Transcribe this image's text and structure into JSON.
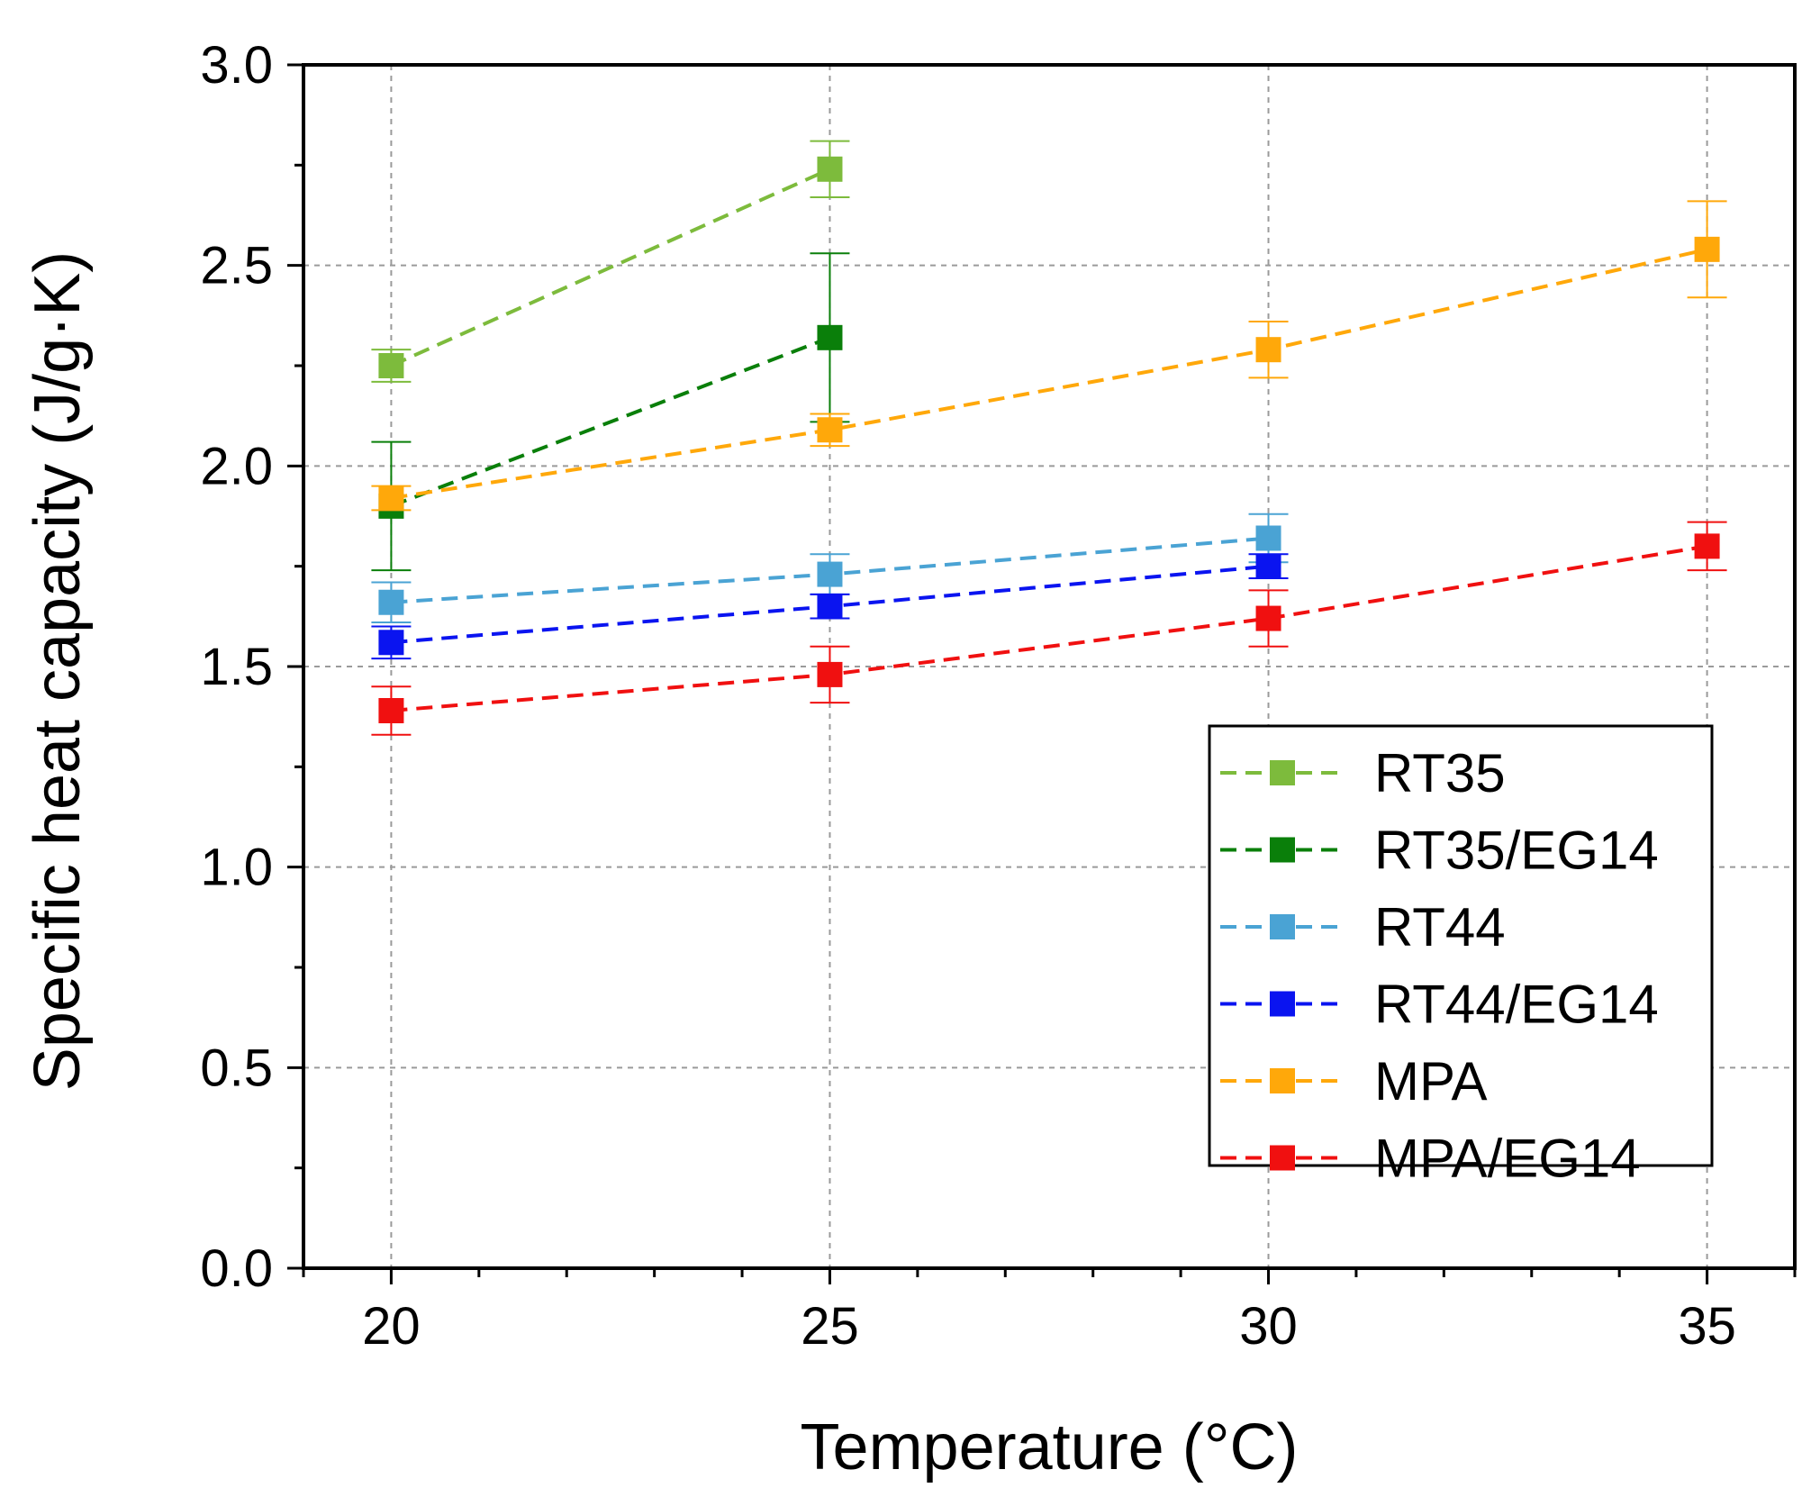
{
  "chart_data": {
    "type": "line",
    "xlabel": "Temperature (°C)",
    "ylabel": "Specific heat capacity (J/g·K)",
    "xlim": [
      19,
      36
    ],
    "ylim": [
      0.0,
      3.0
    ],
    "x_ticks": [
      20,
      25,
      30,
      35
    ],
    "y_ticks": [
      "0.0",
      "0.5",
      "1.0",
      "1.5",
      "2.0",
      "2.5",
      "3.0"
    ],
    "grid": true,
    "line_style": "dashed",
    "marker": "square",
    "legend_position": "bottom-right",
    "series": [
      {
        "name": "RT35",
        "color": "#7dbb3c",
        "x": [
          20,
          25
        ],
        "y": [
          2.25,
          2.74
        ],
        "err": [
          0.04,
          0.07
        ]
      },
      {
        "name": "RT35/EG14",
        "color": "#0a7f0a",
        "x": [
          20,
          25
        ],
        "y": [
          1.9,
          2.32
        ],
        "err": [
          0.16,
          0.21
        ]
      },
      {
        "name": "RT44",
        "color": "#4aa3d4",
        "x": [
          20,
          25,
          30
        ],
        "y": [
          1.66,
          1.73,
          1.82
        ],
        "err": [
          0.05,
          0.05,
          0.06
        ]
      },
      {
        "name": "RT44/EG14",
        "color": "#0a14f0",
        "x": [
          20,
          25,
          30
        ],
        "y": [
          1.56,
          1.65,
          1.75
        ],
        "err": [
          0.04,
          0.03,
          0.03
        ]
      },
      {
        "name": "MPA",
        "color": "#ffa80a",
        "x": [
          20,
          25,
          30,
          35
        ],
        "y": [
          1.92,
          2.09,
          2.29,
          2.54
        ],
        "err": [
          0.03,
          0.04,
          0.07,
          0.12
        ]
      },
      {
        "name": "MPA/EG14",
        "color": "#f01010",
        "x": [
          20,
          25,
          30,
          35
        ],
        "y": [
          1.39,
          1.48,
          1.62,
          1.8
        ],
        "err": [
          0.06,
          0.07,
          0.07,
          0.06
        ]
      }
    ]
  }
}
